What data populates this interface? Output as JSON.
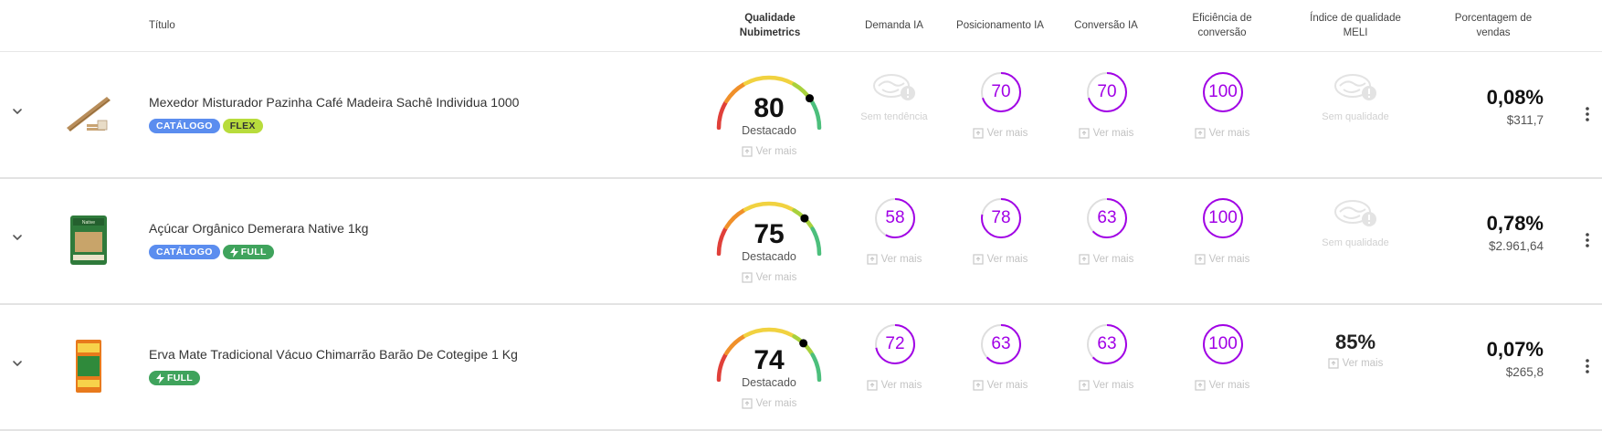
{
  "header": {
    "title": "Título",
    "quality": "Qualidade Nubimetrics",
    "demand": "Demanda IA",
    "positioning": "Posicionamento IA",
    "conversion": "Conversão IA",
    "efficiency": "Eficiência de conversão",
    "meli": "Índice de qualidade MELI",
    "sales": "Porcentagem de vendas"
  },
  "common": {
    "gauge_label": "Destacado",
    "see_more": "Ver mais",
    "no_trend": "Sem tendência",
    "no_quality": "Sem qualidade"
  },
  "colors": {
    "accent_ring": "#a100e6",
    "tag_catalogo": "#5b8def",
    "tag_flex": "#b8dc3c",
    "tag_full": "#3fa35c"
  },
  "rows": [
    {
      "title": "Mexedor Misturador Pazinha Café Madeira Sachê Individua 1000",
      "tags": [
        "CATÁLOGO",
        "FLEX"
      ],
      "thumb_icon": "wooden-stirrer-image",
      "quality_score": 80,
      "demand": null,
      "positioning": 70,
      "conversion": 70,
      "efficiency": 100,
      "meli": null,
      "sales_pct": "0,08%",
      "sales_value": "$311,7"
    },
    {
      "title": "Açúcar Orgânico Demerara Native 1kg",
      "tags": [
        "CATÁLOGO",
        "FULL"
      ],
      "thumb_icon": "sugar-pack-image",
      "quality_score": 75,
      "demand": 58,
      "positioning": 78,
      "conversion": 63,
      "efficiency": 100,
      "meli": null,
      "sales_pct": "0,78%",
      "sales_value": "$2.961,64"
    },
    {
      "title": "Erva Mate Tradicional Vácuo Chimarrão Barão De Cotegipe 1 Kg",
      "tags": [
        "FULL"
      ],
      "thumb_icon": "erva-mate-pack-image",
      "quality_score": 74,
      "demand": 72,
      "positioning": 63,
      "conversion": 63,
      "efficiency": 100,
      "meli": "85%",
      "sales_pct": "0,07%",
      "sales_value": "$265,8"
    }
  ]
}
